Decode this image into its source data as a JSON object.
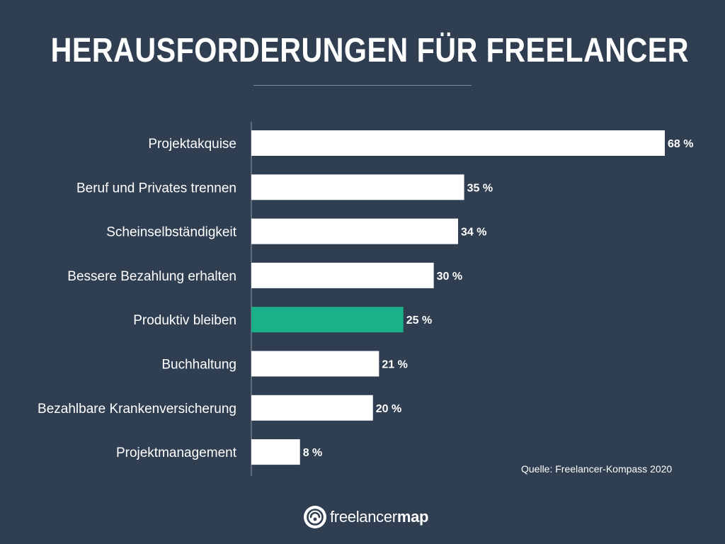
{
  "title": "HERAUSFORDERUNGEN FÜR FREELANCER",
  "source": "Quelle: Freelancer-Kompass 2020",
  "logo": {
    "icon": "freelancermap-logo-icon",
    "text_regular": "freelancer",
    "text_bold": "map"
  },
  "colors": {
    "background": "#2f3e51",
    "bar_default": "#ffffff",
    "bar_highlight": "#1ab08a",
    "text": "#ffffff",
    "axis": "#8a95a3"
  },
  "chart_data": {
    "type": "bar",
    "orientation": "horizontal",
    "categories": [
      "Projektakquise",
      "Beruf und Privates trennen",
      "Scheinselbständigkeit",
      "Bessere Bezahlung erhalten",
      "Produktiv bleiben",
      "Buchhaltung",
      "Bezahlbare Krankenversicherung",
      "Projektmanagement"
    ],
    "values": [
      68,
      35,
      34,
      30,
      25,
      21,
      20,
      8
    ],
    "value_labels": [
      "68 %",
      "35 %",
      "34 %",
      "30 %",
      "25 %",
      "21 %",
      "20 %",
      "8 %"
    ],
    "highlight_category": "Produktiv bleiben",
    "xlim": [
      0,
      68
    ],
    "grid": false,
    "legend": "none"
  }
}
